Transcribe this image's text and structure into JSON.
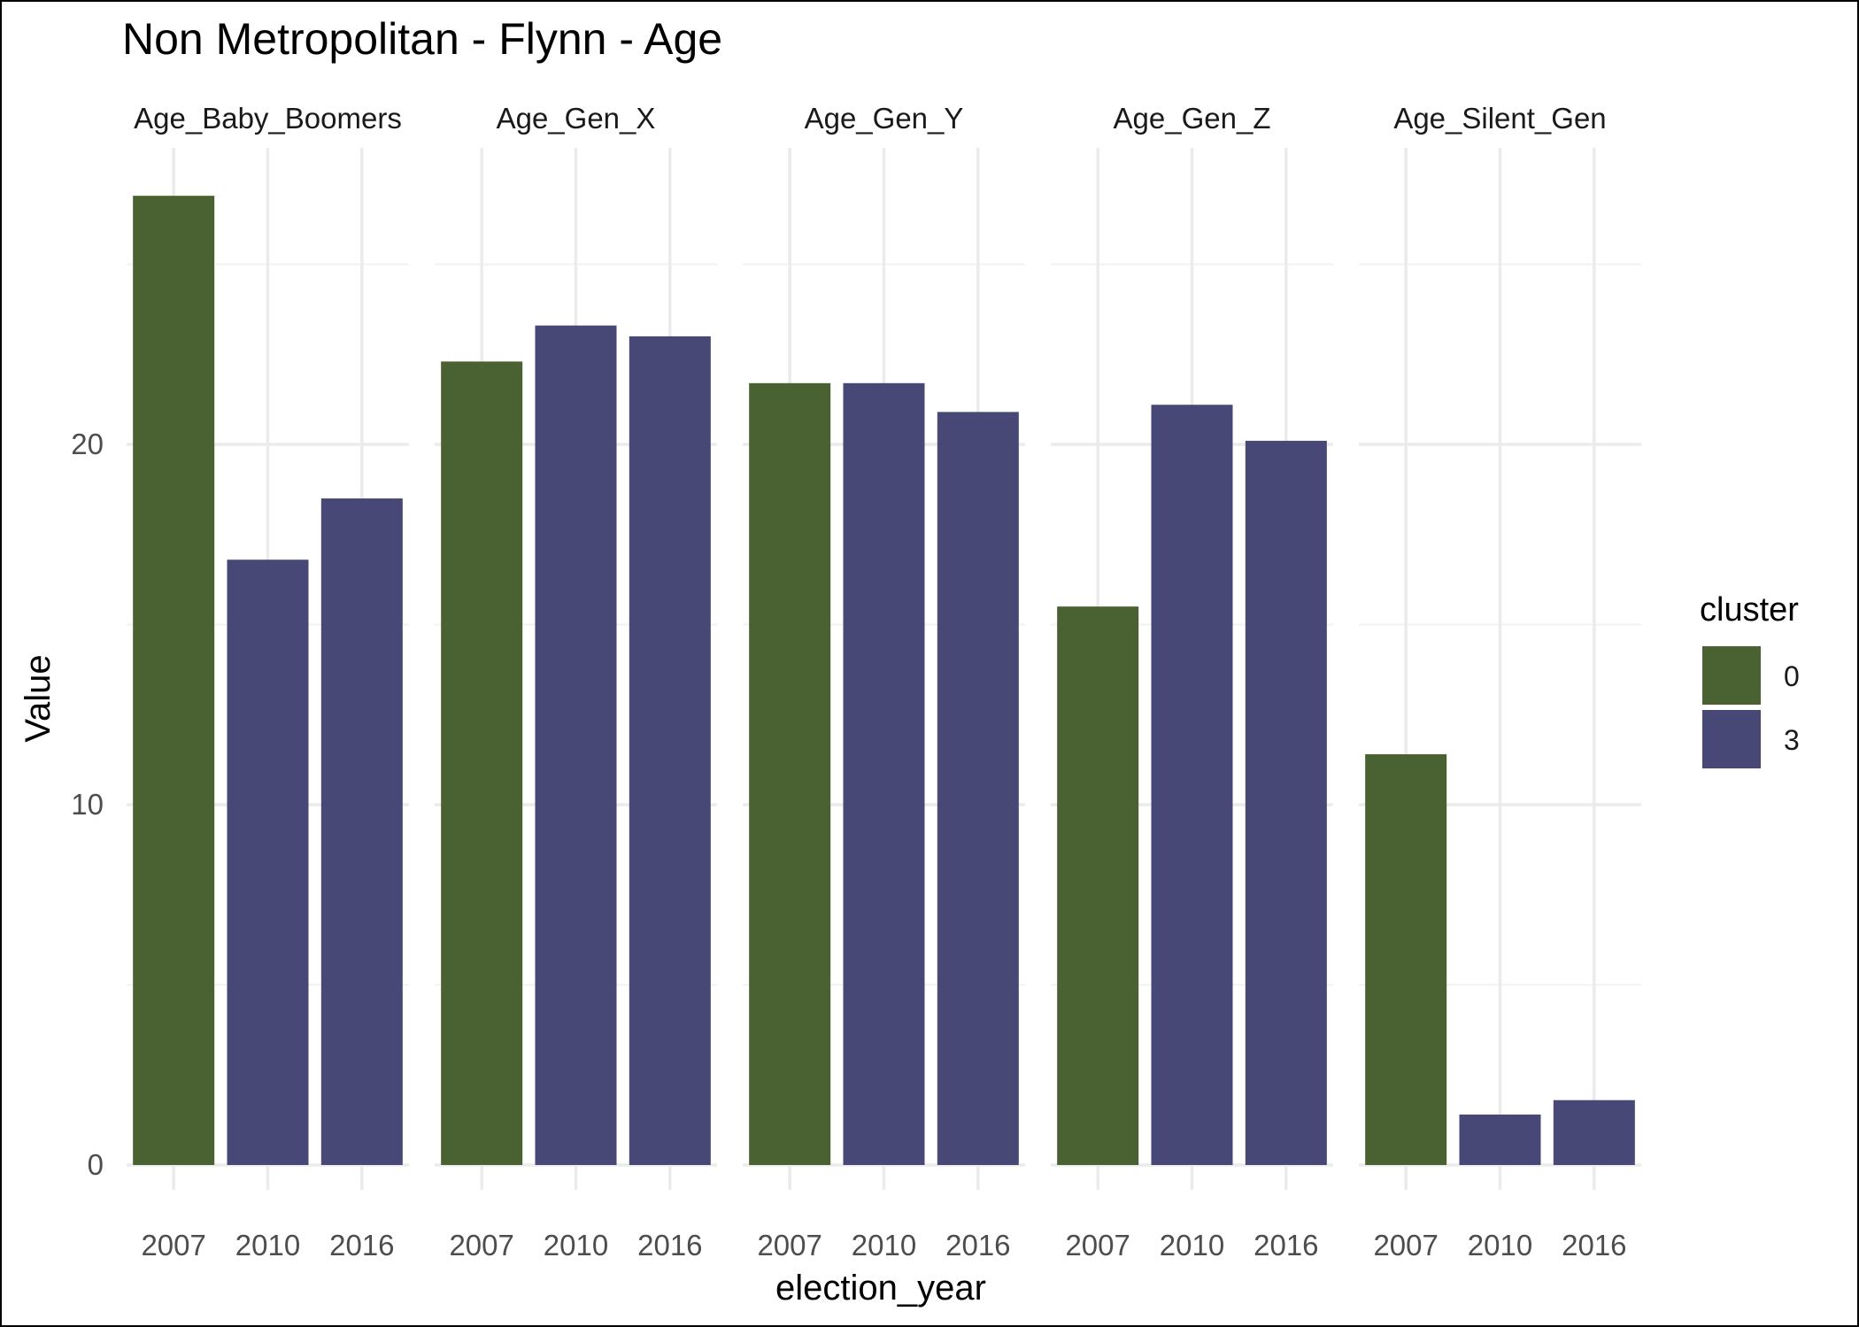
{
  "chart_data": {
    "type": "bar",
    "title": "Non Metropolitan - Flynn - Age",
    "xlabel": "election_year",
    "ylabel": "Value",
    "ylim": [
      0,
      27.5
    ],
    "yticks": [
      0,
      10,
      20
    ],
    "grid": true,
    "categories": [
      "2007",
      "2010",
      "2016"
    ],
    "facets": [
      {
        "name": "Age_Baby_Boomers",
        "values": [
          26.9,
          16.8,
          18.5
        ],
        "clusters": [
          "0",
          "3",
          "3"
        ]
      },
      {
        "name": "Age_Gen_X",
        "values": [
          22.3,
          23.3,
          23.0
        ],
        "clusters": [
          "0",
          "3",
          "3"
        ]
      },
      {
        "name": "Age_Gen_Y",
        "values": [
          21.7,
          21.7,
          20.9
        ],
        "clusters": [
          "0",
          "3",
          "3"
        ]
      },
      {
        "name": "Age_Gen_Z",
        "values": [
          15.5,
          21.1,
          20.1
        ],
        "clusters": [
          "0",
          "3",
          "3"
        ]
      },
      {
        "name": "Age_Silent_Gen",
        "values": [
          11.4,
          1.4,
          1.8
        ],
        "clusters": [
          "0",
          "3",
          "3"
        ]
      }
    ],
    "legend": {
      "title": "cluster",
      "position": "right",
      "items": [
        {
          "label": "0",
          "color": "#4a6131"
        },
        {
          "label": "3",
          "color": "#474876"
        }
      ]
    }
  }
}
